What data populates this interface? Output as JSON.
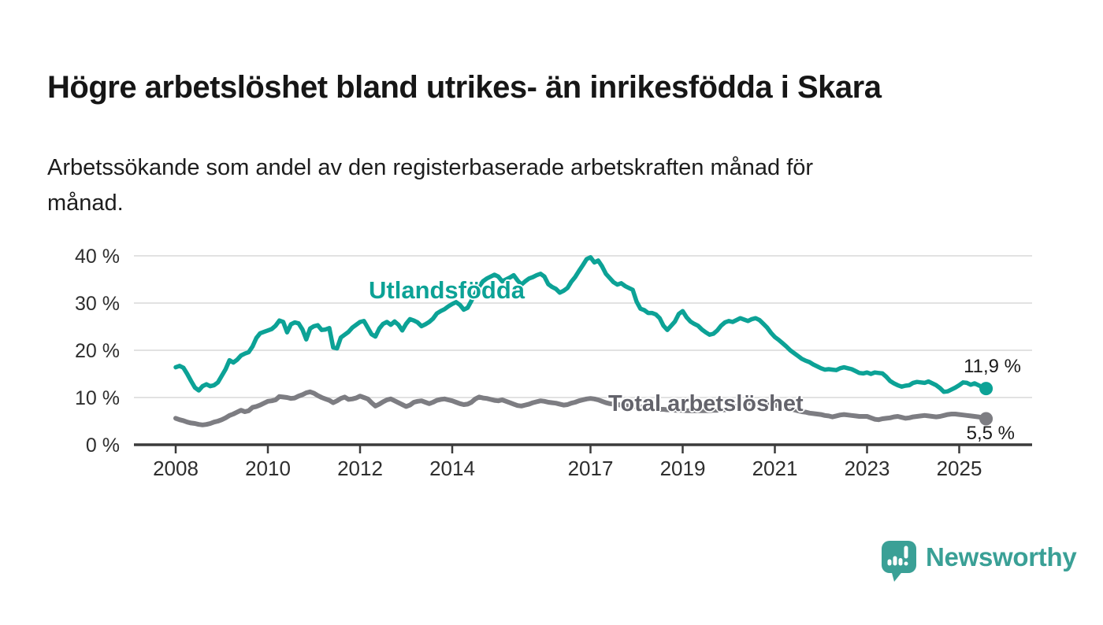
{
  "header": {
    "title": "Högre arbetslöshet bland utrikes- än inrikesfödda i Skara",
    "subtitle_line1": "Arbetssökande som andel av den registerbaserade arbetskraften månad för",
    "subtitle_line2": "månad."
  },
  "chart_data": {
    "type": "line",
    "title": "Högre arbetslöshet bland utrikes- än inrikesfödda i Skara",
    "subtitle": "Arbetssökande som andel av den registerbaserade arbetskraften månad för månad.",
    "grid": "horizontal",
    "legend_position": "inline-labels",
    "x_axis": {
      "ticks": [
        2008,
        2010,
        2012,
        2014,
        2017,
        2019,
        2021,
        2023,
        2025
      ],
      "range": [
        2007.6,
        2026.6
      ]
    },
    "y_axis": {
      "ticks": [
        0,
        10,
        20,
        30,
        40
      ],
      "suffix": " %",
      "range": [
        0,
        42
      ]
    },
    "series": [
      {
        "name": "Utlandsfödda",
        "color": "#0ca296",
        "end_label": "11,9 %",
        "end_value": 11.9,
        "start": 2008,
        "per_year": 12,
        "values": [
          16.4,
          16.7,
          16.3,
          15.0,
          13.5,
          12.1,
          11.5,
          12.4,
          12.8,
          12.4,
          12.6,
          13.2,
          14.6,
          16.0,
          17.9,
          17.4,
          18.0,
          18.9,
          19.3,
          19.6,
          20.8,
          22.6,
          23.6,
          23.9,
          24.2,
          24.5,
          25.2,
          26.3,
          26.0,
          23.8,
          25.5,
          25.9,
          25.7,
          24.4,
          22.3,
          24.6,
          25.1,
          25.3,
          24.3,
          24.4,
          24.7,
          20.6,
          20.4,
          22.7,
          23.3,
          23.9,
          24.8,
          25.4,
          26.0,
          26.2,
          24.8,
          23.4,
          22.9,
          24.6,
          25.6,
          26.0,
          25.4,
          26.1,
          25.4,
          24.2,
          25.6,
          26.6,
          26.3,
          25.9,
          25.1,
          25.5,
          26.0,
          26.7,
          27.8,
          28.3,
          28.7,
          29.3,
          29.8,
          30.2,
          29.6,
          28.6,
          29.0,
          30.5,
          32.0,
          33.5,
          34.6,
          35.2,
          35.6,
          36.0,
          35.6,
          34.6,
          35.0,
          35.4,
          35.9,
          34.8,
          33.9,
          34.6,
          35.2,
          35.5,
          35.9,
          36.2,
          35.6,
          34.0,
          33.4,
          33.0,
          32.2,
          32.6,
          33.2,
          34.5,
          35.5,
          36.8,
          38.0,
          39.3,
          39.7,
          38.6,
          39.0,
          37.8,
          36.2,
          35.3,
          34.4,
          33.9,
          34.2,
          33.6,
          33.2,
          32.8,
          30.3,
          28.8,
          28.5,
          27.9,
          27.9,
          27.6,
          26.8,
          25.2,
          24.3,
          25.2,
          26.1,
          27.7,
          28.3,
          27.0,
          26.1,
          25.6,
          25.2,
          24.4,
          23.8,
          23.3,
          23.5,
          24.2,
          25.2,
          25.9,
          26.2,
          26.0,
          26.4,
          26.8,
          26.5,
          26.2,
          26.6,
          26.8,
          26.4,
          25.6,
          24.8,
          23.7,
          22.8,
          22.2,
          21.5,
          20.8,
          20.0,
          19.4,
          18.8,
          18.2,
          17.8,
          17.5,
          17.0,
          16.6,
          16.2,
          15.9,
          16.0,
          15.9,
          15.8,
          16.2,
          16.4,
          16.2,
          16.0,
          15.6,
          15.2,
          15.1,
          15.3,
          15.0,
          15.3,
          15.2,
          15.1,
          14.4,
          13.5,
          13.0,
          12.6,
          12.3,
          12.5,
          12.6,
          13.1,
          13.3,
          13.2,
          13.1,
          13.4,
          13.0,
          12.6,
          12.0,
          11.2,
          11.3,
          11.7,
          12.1,
          12.6,
          13.2,
          13.1,
          12.7,
          13.0,
          12.6,
          12.2,
          11.9
        ]
      },
      {
        "name": "Total arbetslöshet",
        "color": "#7d7d82",
        "end_label": "5,5 %",
        "end_value": 5.5,
        "start": 2008,
        "per_year": 12,
        "values": [
          5.6,
          5.3,
          5.1,
          4.8,
          4.6,
          4.5,
          4.3,
          4.2,
          4.3,
          4.5,
          4.8,
          5.0,
          5.3,
          5.7,
          6.2,
          6.5,
          6.9,
          7.3,
          7.0,
          7.2,
          7.9,
          8.1,
          8.4,
          8.8,
          9.2,
          9.3,
          9.5,
          10.2,
          10.1,
          10.0,
          9.8,
          9.9,
          10.3,
          10.6,
          11.0,
          11.2,
          10.9,
          10.4,
          10.0,
          9.7,
          9.4,
          8.9,
          9.3,
          9.8,
          10.1,
          9.6,
          9.7,
          9.9,
          10.3,
          10.0,
          9.7,
          8.9,
          8.2,
          8.6,
          9.1,
          9.5,
          9.7,
          9.3,
          8.9,
          8.5,
          8.1,
          8.4,
          9.0,
          9.2,
          9.3,
          9.0,
          8.7,
          9.0,
          9.4,
          9.6,
          9.7,
          9.5,
          9.3,
          9.0,
          8.7,
          8.5,
          8.6,
          9.0,
          9.7,
          10.1,
          9.9,
          9.8,
          9.6,
          9.4,
          9.3,
          9.5,
          9.2,
          8.9,
          8.6,
          8.3,
          8.2,
          8.4,
          8.6,
          8.9,
          9.1,
          9.3,
          9.2,
          9.0,
          8.9,
          8.8,
          8.6,
          8.4,
          8.5,
          8.8,
          9.0,
          9.3,
          9.5,
          9.7,
          9.8,
          9.7,
          9.5,
          9.2,
          8.9,
          8.7,
          8.6,
          8.5,
          8.4,
          8.3,
          8.2,
          8.1,
          8.1,
          8.0,
          7.9,
          7.8,
          7.7,
          7.6,
          7.5,
          7.5,
          7.4,
          7.4,
          7.3,
          7.3,
          7.3,
          7.2,
          7.2,
          7.2,
          7.2,
          7.2,
          7.2,
          7.2,
          7.3,
          7.3,
          7.4,
          7.4,
          7.5,
          7.8,
          8.1,
          8.5,
          8.7,
          8.9,
          8.9,
          8.8,
          8.8,
          8.7,
          8.6,
          8.5,
          8.4,
          8.2,
          8.0,
          7.8,
          7.6,
          7.4,
          7.2,
          7.0,
          6.9,
          6.7,
          6.6,
          6.5,
          6.4,
          6.2,
          6.1,
          5.9,
          6.1,
          6.3,
          6.4,
          6.3,
          6.2,
          6.1,
          6.0,
          6.0,
          6.0,
          5.7,
          5.4,
          5.3,
          5.5,
          5.6,
          5.7,
          5.9,
          6.0,
          5.8,
          5.6,
          5.7,
          5.9,
          6.0,
          6.1,
          6.2,
          6.1,
          6.0,
          5.9,
          6.0,
          6.2,
          6.4,
          6.5,
          6.5,
          6.4,
          6.3,
          6.2,
          6.1,
          6.0,
          5.9,
          5.7,
          5.5
        ]
      }
    ]
  },
  "footer": {
    "brand": "Newsworthy",
    "brand_color": "#3aa096"
  }
}
